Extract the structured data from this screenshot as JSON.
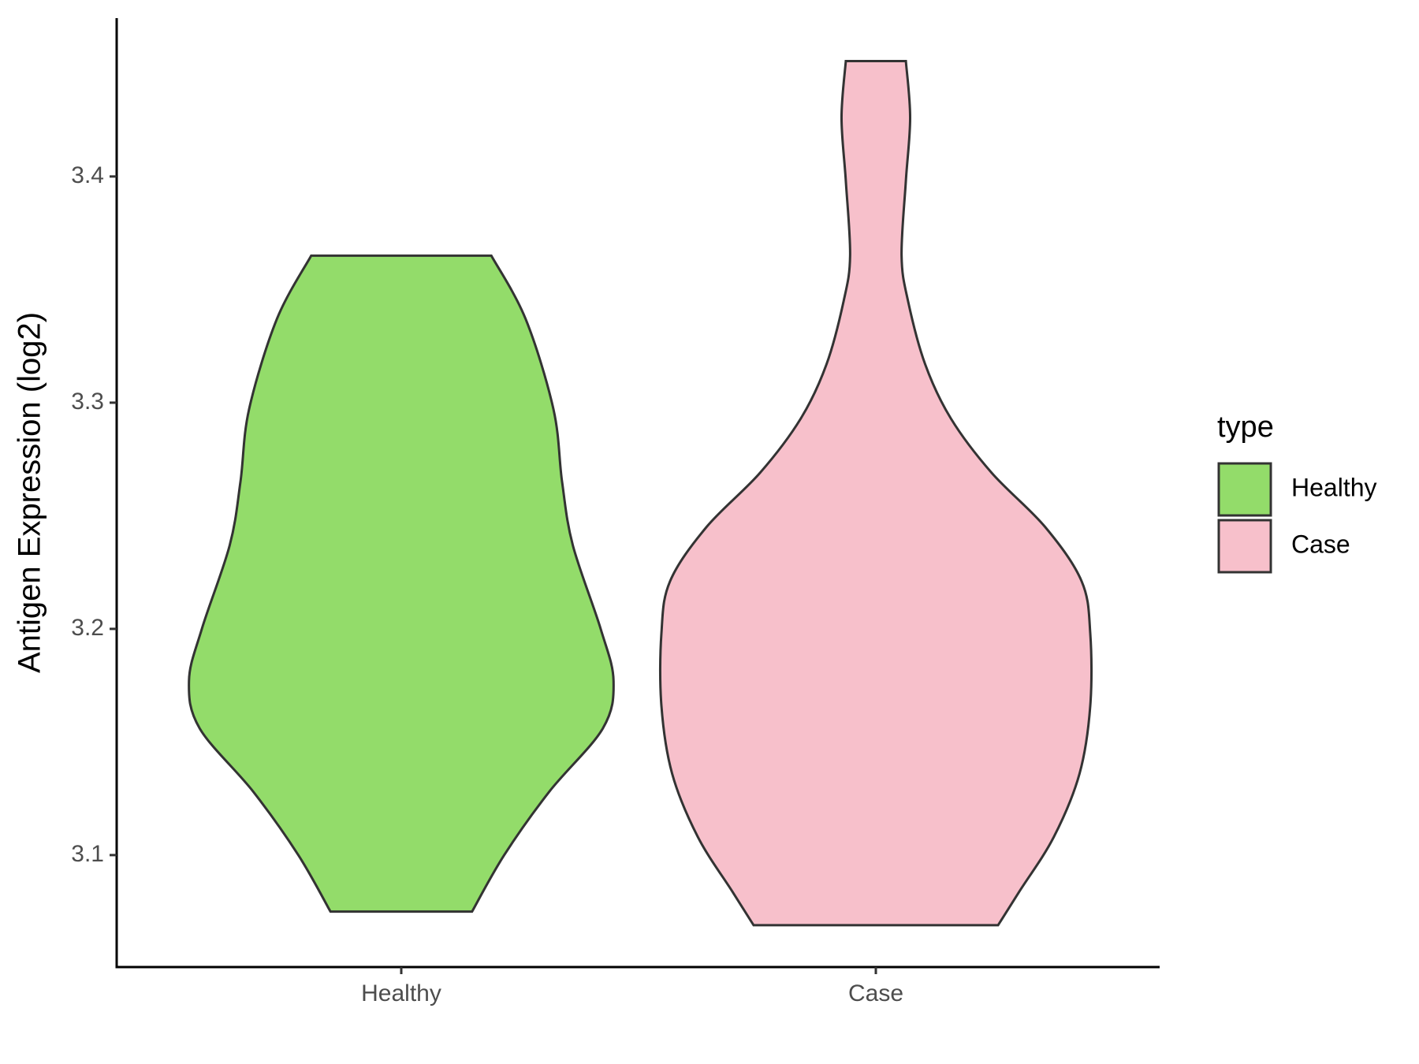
{
  "chart_data": {
    "type": "violin",
    "y_label": "Antigen Expression (log2)",
    "categories": [
      "Healthy",
      "Case"
    ],
    "ylim": [
      3.0505,
      3.47
    ],
    "yticks": [
      3.1,
      3.2,
      3.3,
      3.4
    ],
    "legend_title": "type",
    "legend": "right",
    "series": [
      {
        "name": "Healthy",
        "color": "#93dc6a",
        "y": [
          3.365,
          3.337,
          3.297,
          3.265,
          3.237,
          3.2,
          3.177,
          3.156,
          3.128,
          3.1,
          3.075
        ],
        "density": [
          0.42,
          0.58,
          0.71,
          0.75,
          0.8,
          0.93,
          0.99,
          0.94,
          0.69,
          0.48,
          0.33
        ]
      },
      {
        "name": "Case",
        "color": "#f7c0cb",
        "y": [
          3.451,
          3.426,
          3.398,
          3.365,
          3.345,
          3.317,
          3.293,
          3.269,
          3.245,
          3.221,
          3.198,
          3.166,
          3.136,
          3.108,
          3.084,
          3.069
        ],
        "density": [
          0.14,
          0.16,
          0.14,
          0.12,
          0.15,
          0.23,
          0.35,
          0.54,
          0.79,
          0.96,
          1.0,
          1.0,
          0.95,
          0.83,
          0.67,
          0.57
        ]
      }
    ]
  }
}
